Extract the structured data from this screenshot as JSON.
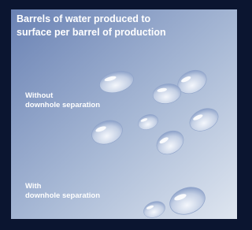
{
  "header": {
    "title": [
      "Barrels of water produced to",
      "surface per barrel of production"
    ]
  },
  "groups": [
    {
      "label": [
        "Without",
        "downhole separation"
      ]
    },
    {
      "label": [
        "With",
        "downhole separation"
      ]
    }
  ]
}
